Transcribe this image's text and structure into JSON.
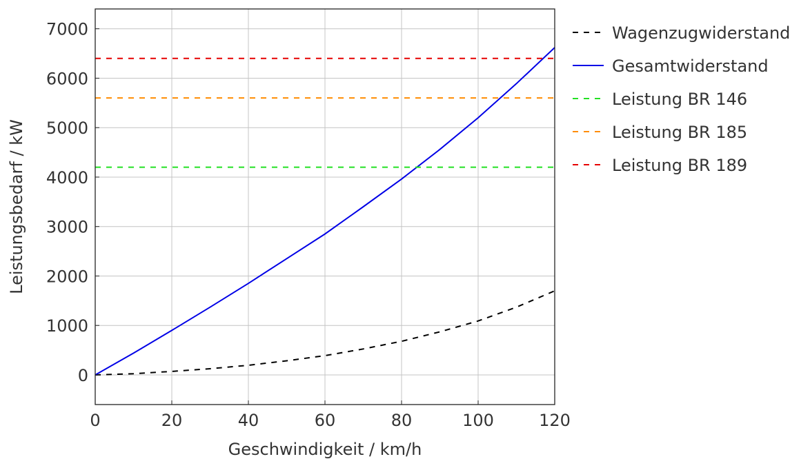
{
  "chart_data": {
    "type": "line",
    "title": "",
    "xlabel": "Geschwindigkeit / km/h",
    "ylabel": "Leistungsbedarf / kW",
    "xlim": [
      0,
      120
    ],
    "ylim": [
      -600,
      7400
    ],
    "xticks": [
      0,
      20,
      40,
      60,
      80,
      100,
      120
    ],
    "yticks": [
      0,
      1000,
      2000,
      3000,
      4000,
      5000,
      6000,
      7000
    ],
    "grid": true,
    "legend_position": "outside-right",
    "series": [
      {
        "name": "Wagenzugwiderstand",
        "color": "#000000",
        "dash": "dashed",
        "x": [
          0,
          10,
          20,
          30,
          40,
          50,
          60,
          70,
          80,
          90,
          100,
          110,
          120
        ],
        "y": [
          0,
          25,
          70,
          125,
          195,
          285,
          390,
          525,
          680,
          870,
          1090,
          1370,
          1700
        ]
      },
      {
        "name": "Gesamtwiderstand",
        "color": "#0000e6",
        "dash": "solid",
        "x": [
          0,
          10,
          20,
          30,
          40,
          50,
          60,
          70,
          80,
          90,
          100,
          110,
          120
        ],
        "y": [
          0,
          440,
          900,
          1370,
          1850,
          2350,
          2850,
          3400,
          3960,
          4560,
          5200,
          5890,
          6620
        ]
      },
      {
        "name": "Leistung BR 146",
        "color": "#22e022",
        "dash": "dashed",
        "x": [
          0,
          120
        ],
        "y": [
          4200,
          4200
        ]
      },
      {
        "name": "Leistung BR 185",
        "color": "#ff8c00",
        "dash": "dashed",
        "x": [
          0,
          120
        ],
        "y": [
          5600,
          5600
        ]
      },
      {
        "name": "Leistung BR 189",
        "color": "#e60000",
        "dash": "dashed",
        "x": [
          0,
          120
        ],
        "y": [
          6400,
          6400
        ]
      }
    ]
  }
}
